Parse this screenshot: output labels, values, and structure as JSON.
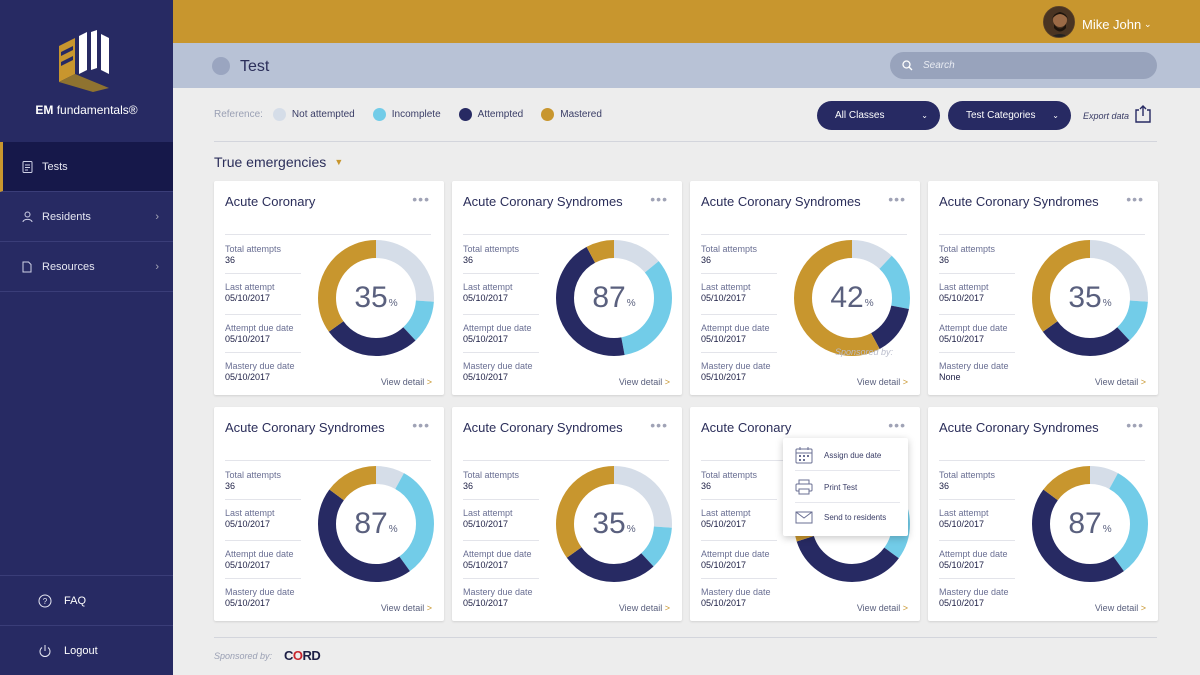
{
  "colors": {
    "sidebar": "#272a63",
    "topbar": "#c8962e",
    "not_attempted": "#d5dde8",
    "incomplete": "#72cce8",
    "attempted": "#272a63",
    "mastered": "#c8962e"
  },
  "brand": {
    "bold": "EM",
    "rest": " fundamentals®"
  },
  "sidebar": {
    "items": [
      {
        "label": "Tests",
        "icon": "clipboard-icon"
      },
      {
        "label": "Residents",
        "icon": "user-icon"
      },
      {
        "label": "Resources",
        "icon": "document-icon"
      }
    ],
    "bottom": [
      {
        "label": "FAQ",
        "icon": "help-icon"
      },
      {
        "label": "Logout",
        "icon": "power-icon"
      }
    ]
  },
  "user": {
    "name": "Mike John"
  },
  "page": {
    "title": "Test"
  },
  "search": {
    "placeholder": "Search"
  },
  "legend": {
    "reference": "Reference:",
    "items": [
      "Not attempted",
      "Incomplete",
      "Attempted",
      "Mastered"
    ]
  },
  "filters": {
    "classes": "All Classes",
    "categories": "Test Categories",
    "export": "Export data"
  },
  "section": {
    "title": "True emergencies"
  },
  "labels": {
    "total_attempts": "Total attempts",
    "last_attempt": "Last attempt",
    "attempt_due": "Attempt due date",
    "mastery_due": "Mastery due date",
    "view_detail": "View detail",
    "view_detail_arrow": ">",
    "pct_sign": "%"
  },
  "cards": [
    {
      "title": "Acute Coronary",
      "total": "36",
      "last": "05/10/2017",
      "attempt_due": "05/10/2017",
      "mastery_due": "05/10/2017",
      "percent": "35",
      "segments": {
        "mastered": 0.35,
        "attempted": 0.27,
        "incomplete": 0.12,
        "not_attempted": 0.26
      }
    },
    {
      "title": "Acute Coronary Syndromes",
      "total": "36",
      "last": "05/10/2017",
      "attempt_due": "05/10/2017",
      "mastery_due": "05/10/2017",
      "percent": "87",
      "segments": {
        "mastered": 0.08,
        "attempted": 0.45,
        "incomplete": 0.33,
        "not_attempted": 0.14
      }
    },
    {
      "title": "Acute Coronary Syndromes",
      "total": "36",
      "last": "05/10/2017",
      "attempt_due": "05/10/2017",
      "mastery_due": "05/10/2017",
      "percent": "42",
      "ghost": "Sponsored by:",
      "segments": {
        "mastered": 0.58,
        "attempted": 0.14,
        "incomplete": 0.16,
        "not_attempted": 0.12
      }
    },
    {
      "title": "Acute Coronary Syndromes",
      "total": "36",
      "last": "05/10/2017",
      "attempt_due": "05/10/2017",
      "mastery_due": "None",
      "percent": "35",
      "segments": {
        "mastered": 0.35,
        "attempted": 0.27,
        "incomplete": 0.12,
        "not_attempted": 0.26
      }
    },
    {
      "title": "Acute Coronary Syndromes",
      "total": "36",
      "last": "05/10/2017",
      "attempt_due": "05/10/2017",
      "mastery_due": "05/10/2017",
      "percent": "87",
      "segments": {
        "mastered": 0.15,
        "attempted": 0.45,
        "incomplete": 0.32,
        "not_attempted": 0.08
      }
    },
    {
      "title": "Acute Coronary Syndromes",
      "total": "36",
      "last": "05/10/2017",
      "attempt_due": "05/10/2017",
      "mastery_due": "05/10/2017",
      "percent": "35",
      "segments": {
        "mastered": 0.35,
        "attempted": 0.27,
        "incomplete": 0.12,
        "not_attempted": 0.26
      }
    },
    {
      "title": "Acute Coronary",
      "total": "36",
      "last": "05/10/2017",
      "attempt_due": "05/10/2017",
      "mastery_due": "05/10/2017",
      "percent": "",
      "segments": {
        "mastered": 0.3,
        "attempted": 0.35,
        "incomplete": 0.15,
        "not_attempted": 0.2
      }
    },
    {
      "title": "Acute Coronary Syndromes",
      "total": "36",
      "last": "05/10/2017",
      "attempt_due": "05/10/2017",
      "mastery_due": "05/10/2017",
      "percent": "87",
      "segments": {
        "mastered": 0.15,
        "attempted": 0.45,
        "incomplete": 0.32,
        "not_attempted": 0.08
      }
    }
  ],
  "menu": {
    "items": [
      "Assign due date",
      "Print Test",
      "Send to residents"
    ]
  },
  "footer": {
    "sponsored": "Sponsored by:",
    "cord_c": "C",
    "cord_o": "O",
    "cord_rest": "RD"
  }
}
